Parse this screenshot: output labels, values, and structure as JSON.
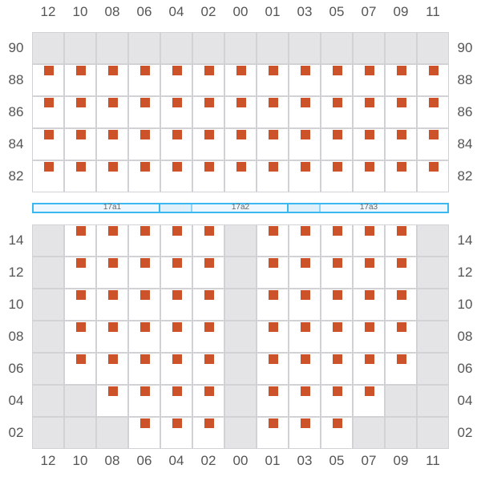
{
  "columns": [
    "12",
    "10",
    "08",
    "06",
    "04",
    "02",
    "00",
    "01",
    "03",
    "05",
    "07",
    "09",
    "11"
  ],
  "top_rows": [
    {
      "label": "90",
      "cells": "0000000000000"
    },
    {
      "label": "88",
      "cells": "1111111111111"
    },
    {
      "label": "86",
      "cells": "1111111111111"
    },
    {
      "label": "84",
      "cells": "1111111111111"
    },
    {
      "label": "82",
      "cells": "1111111111111"
    }
  ],
  "bottom_rows": [
    {
      "label": "14",
      "cells": "0111110111110"
    },
    {
      "label": "12",
      "cells": "0111110111110"
    },
    {
      "label": "10",
      "cells": "0111110111110"
    },
    {
      "label": "08",
      "cells": "0111110111110"
    },
    {
      "label": "06",
      "cells": "0111110111110"
    },
    {
      "label": "04",
      "cells": "0011110111100"
    },
    {
      "label": "02",
      "cells": "0001110111000"
    }
  ],
  "bands": [
    "17a1",
    "17a2",
    "17a3"
  ],
  "colors": {
    "occupied": "#cc5229",
    "unavailable": "#e4e4e6",
    "band_border": "#3bb8ef"
  }
}
